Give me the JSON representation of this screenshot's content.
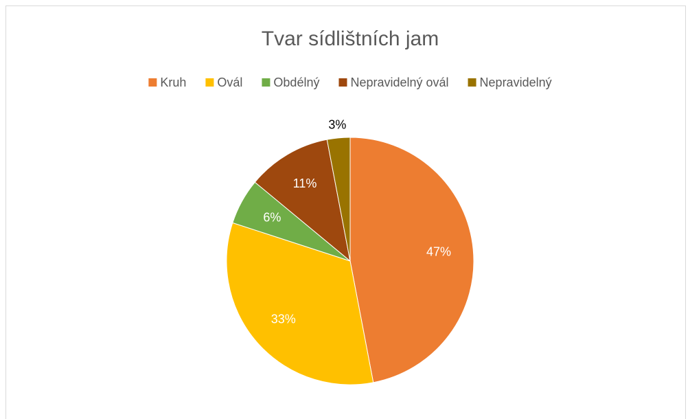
{
  "chart_data": {
    "type": "pie",
    "title": "Tvar sídlištních jam",
    "categories": [
      "Kruh",
      "Ovál",
      "Obdélný",
      "Nepravidelný ovál",
      "Nepravidelný"
    ],
    "values": [
      47,
      33,
      6,
      11,
      3
    ],
    "value_labels": [
      "47%",
      "33%",
      "6%",
      "11%",
      "3%"
    ],
    "colors": [
      "#ed7d31",
      "#ffc000",
      "#70ad47",
      "#9e480e",
      "#997300"
    ],
    "legend": "top"
  }
}
